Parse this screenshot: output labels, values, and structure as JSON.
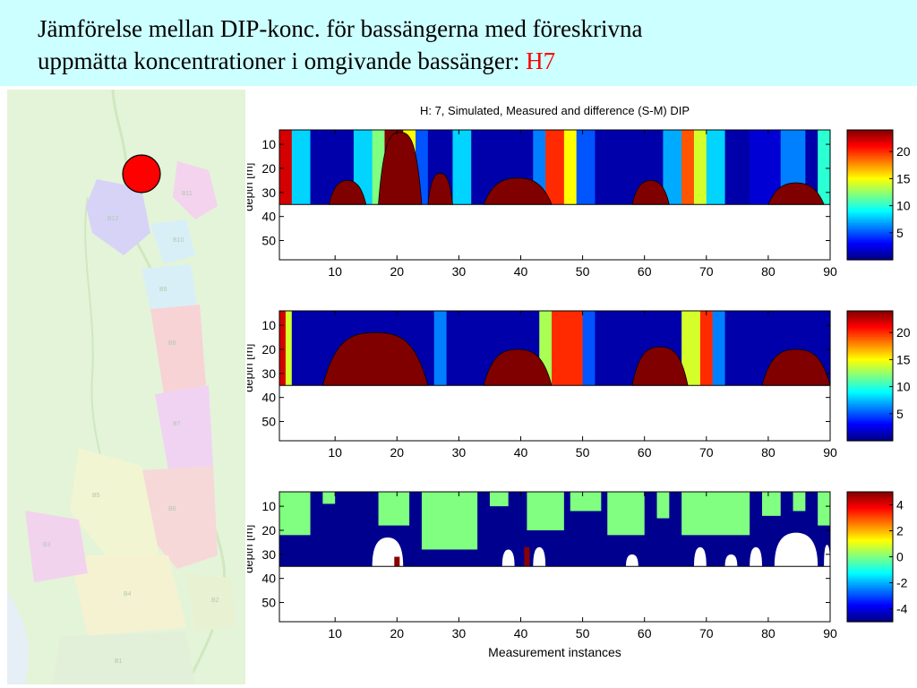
{
  "slide": {
    "title_line1": "Jämförelse mellan DIP-konc. för bassängerna med föreskrivna",
    "title_line2_prefix": "uppmätta koncentrationer i omgivande bassänger: ",
    "title_highlight": "H7",
    "highlight_color": "#ff0000",
    "band_color": "#ccffff"
  },
  "map": {
    "marker_color": "#ff0000",
    "basin_labels": [
      "B12",
      "B11",
      "B10",
      "B9",
      "B8",
      "B7",
      "B6",
      "B5",
      "B4",
      "B3",
      "B2",
      "B1"
    ]
  },
  "chart_data": [
    {
      "type": "heatmap",
      "title": "H: 7, Simulated, Measured and difference (S-M) DIP",
      "xlabel": "",
      "ylabel": "depth [m]",
      "xlim": [
        1,
        90
      ],
      "ylim": [
        58,
        4
      ],
      "xticks": [
        10,
        20,
        30,
        40,
        50,
        60,
        70,
        80,
        90
      ],
      "yticks": [
        10,
        20,
        30,
        40,
        50
      ],
      "colorbar": {
        "ticks": [
          20,
          15,
          10,
          5
        ],
        "range": [
          0,
          24
        ]
      },
      "data_depth_max": 35,
      "columns": [
        {
          "x0": 1,
          "x1": 3,
          "v": 22
        },
        {
          "x0": 3,
          "x1": 6,
          "v": 8
        },
        {
          "x0": 6,
          "x1": 10,
          "v": 1
        },
        {
          "x0": 10,
          "x1": 13,
          "v": 1
        },
        {
          "x0": 13,
          "x1": 16,
          "v": 8
        },
        {
          "x0": 16,
          "x1": 18,
          "v": 12
        },
        {
          "x0": 18,
          "x1": 21,
          "v": 24
        },
        {
          "x0": 21,
          "x1": 23,
          "v": 15
        },
        {
          "x0": 23,
          "x1": 25,
          "v": 5
        },
        {
          "x0": 25,
          "x1": 29,
          "v": 1
        },
        {
          "x0": 29,
          "x1": 32,
          "v": 8
        },
        {
          "x0": 32,
          "x1": 38,
          "v": 1
        },
        {
          "x0": 38,
          "x1": 42,
          "v": 1
        },
        {
          "x0": 42,
          "x1": 44,
          "v": 6
        },
        {
          "x0": 44,
          "x1": 47,
          "v": 20
        },
        {
          "x0": 47,
          "x1": 49,
          "v": 15
        },
        {
          "x0": 49,
          "x1": 52,
          "v": 5
        },
        {
          "x0": 52,
          "x1": 57,
          "v": 1
        },
        {
          "x0": 57,
          "x1": 63,
          "v": 1
        },
        {
          "x0": 63,
          "x1": 66,
          "v": 7
        },
        {
          "x0": 66,
          "x1": 68,
          "v": 19
        },
        {
          "x0": 68,
          "x1": 70,
          "v": 14
        },
        {
          "x0": 70,
          "x1": 73,
          "v": 8
        },
        {
          "x0": 73,
          "x1": 77,
          "v": 1
        },
        {
          "x0": 77,
          "x1": 82,
          "v": 2
        },
        {
          "x0": 82,
          "x1": 86,
          "v": 6
        },
        {
          "x0": 86,
          "x1": 88,
          "v": 1
        },
        {
          "x0": 88,
          "x1": 90,
          "v": 10
        }
      ],
      "mounds": [
        {
          "x0": 9,
          "x1": 15,
          "top": 25
        },
        {
          "x0": 17,
          "x1": 24,
          "top": 5
        },
        {
          "x0": 25,
          "x1": 29,
          "top": 22
        },
        {
          "x0": 34,
          "x1": 45,
          "top": 24
        },
        {
          "x0": 58,
          "x1": 64,
          "top": 25
        },
        {
          "x0": 80,
          "x1": 89,
          "top": 26
        }
      ]
    },
    {
      "type": "heatmap",
      "title": "",
      "xlabel": "",
      "ylabel": "depth [m]",
      "xlim": [
        1,
        90
      ],
      "ylim": [
        58,
        4
      ],
      "xticks": [
        10,
        20,
        30,
        40,
        50,
        60,
        70,
        80,
        90
      ],
      "yticks": [
        10,
        20,
        30,
        40,
        50
      ],
      "colorbar": {
        "ticks": [
          20,
          15,
          10,
          5
        ],
        "range": [
          0,
          24
        ]
      },
      "data_depth_max": 35,
      "columns": [
        {
          "x0": 1,
          "x1": 2,
          "v": 22
        },
        {
          "x0": 2,
          "x1": 3,
          "v": 14
        },
        {
          "x0": 3,
          "x1": 10,
          "v": 1
        },
        {
          "x0": 10,
          "x1": 26,
          "v": 1
        },
        {
          "x0": 26,
          "x1": 28,
          "v": 6
        },
        {
          "x0": 28,
          "x1": 31,
          "v": 1
        },
        {
          "x0": 31,
          "x1": 43,
          "v": 1
        },
        {
          "x0": 43,
          "x1": 45,
          "v": 13
        },
        {
          "x0": 45,
          "x1": 50,
          "v": 20
        },
        {
          "x0": 50,
          "x1": 52,
          "v": 5
        },
        {
          "x0": 52,
          "x1": 56,
          "v": 1
        },
        {
          "x0": 56,
          "x1": 66,
          "v": 1
        },
        {
          "x0": 66,
          "x1": 69,
          "v": 14
        },
        {
          "x0": 69,
          "x1": 71,
          "v": 20
        },
        {
          "x0": 71,
          "x1": 73,
          "v": 6
        },
        {
          "x0": 73,
          "x1": 77,
          "v": 1
        },
        {
          "x0": 77,
          "x1": 90,
          "v": 1
        }
      ],
      "mounds": [
        {
          "x0": 8,
          "x1": 25,
          "top": 13
        },
        {
          "x0": 34,
          "x1": 45,
          "top": 20
        },
        {
          "x0": 58,
          "x1": 67,
          "top": 19
        },
        {
          "x0": 79,
          "x1": 90,
          "top": 20
        }
      ]
    },
    {
      "type": "heatmap",
      "title": "",
      "xlabel": "Measurement instances",
      "ylabel": "depth [m]",
      "xlim": [
        1,
        90
      ],
      "ylim": [
        58,
        4
      ],
      "xticks": [
        10,
        20,
        30,
        40,
        50,
        60,
        70,
        80,
        90
      ],
      "yticks": [
        10,
        20,
        30,
        40,
        50
      ],
      "colorbar": {
        "ticks": [
          4,
          2,
          0,
          -2,
          -4
        ],
        "range": [
          -5,
          5
        ]
      },
      "data_depth_max": 35,
      "green_patches": [
        {
          "x0": 1,
          "x1": 6,
          "top": 4,
          "bottom": 22
        },
        {
          "x0": 8,
          "x1": 10,
          "top": 4,
          "bottom": 9
        },
        {
          "x0": 17,
          "x1": 22,
          "top": 4,
          "bottom": 18
        },
        {
          "x0": 24,
          "x1": 33,
          "top": 4,
          "bottom": 28
        },
        {
          "x0": 35,
          "x1": 38,
          "top": 4,
          "bottom": 10
        },
        {
          "x0": 41,
          "x1": 47,
          "top": 4,
          "bottom": 20
        },
        {
          "x0": 48,
          "x1": 53,
          "top": 4,
          "bottom": 12
        },
        {
          "x0": 54,
          "x1": 60,
          "top": 4,
          "bottom": 22
        },
        {
          "x0": 62,
          "x1": 64,
          "top": 4,
          "bottom": 15
        },
        {
          "x0": 66,
          "x1": 77,
          "top": 4,
          "bottom": 22
        },
        {
          "x0": 79,
          "x1": 82,
          "top": 4,
          "bottom": 14
        },
        {
          "x0": 84,
          "x1": 86,
          "top": 4,
          "bottom": 12
        },
        {
          "x0": 88,
          "x1": 90,
          "top": 4,
          "bottom": 18
        }
      ],
      "white_gaps": [
        {
          "x0": 16,
          "x1": 21,
          "top": 23
        },
        {
          "x0": 37,
          "x1": 39,
          "top": 28
        },
        {
          "x0": 42,
          "x1": 44,
          "top": 27
        },
        {
          "x0": 57,
          "x1": 59,
          "top": 30
        },
        {
          "x0": 68,
          "x1": 70,
          "top": 27
        },
        {
          "x0": 73,
          "x1": 75,
          "top": 30
        },
        {
          "x0": 77,
          "x1": 79,
          "top": 27
        },
        {
          "x0": 81,
          "x1": 88,
          "top": 21
        },
        {
          "x0": 89,
          "x1": 90,
          "top": 26
        }
      ],
      "red_spots": [
        {
          "x": 41,
          "top": 27
        },
        {
          "x": 20,
          "top": 31
        }
      ]
    }
  ]
}
